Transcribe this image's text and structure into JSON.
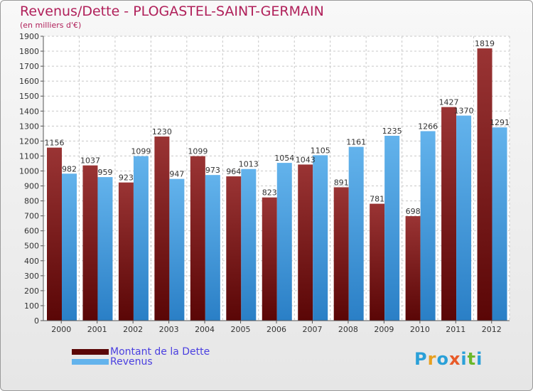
{
  "title": "Revenus/Dette - PLOGASTEL-SAINT-GERMAIN",
  "subtitle": "(en milliers d'€)",
  "logo": {
    "text": "Proxiti",
    "letters": [
      {
        "ch": "P",
        "color": "#2aa0d8"
      },
      {
        "ch": "r",
        "color": "#e8a020"
      },
      {
        "ch": "o",
        "color": "#2aa0d8"
      },
      {
        "ch": "x",
        "color": "#e85a28"
      },
      {
        "ch": "i",
        "color": "#2aa0d8"
      },
      {
        "ch": "t",
        "color": "#6ab82a"
      },
      {
        "ch": "i",
        "color": "#2aa0d8"
      }
    ]
  },
  "colors": {
    "debt_dark": "#5a0606",
    "debt_light": "#9a3434",
    "revenue_dark": "#2a7fc6",
    "revenue_light": "#63b3ec",
    "title": "#b0205a",
    "legend_text": "#4a3fe0"
  },
  "chart_data": {
    "type": "bar",
    "categories": [
      "2000",
      "2001",
      "2002",
      "2003",
      "2004",
      "2005",
      "2006",
      "2007",
      "2008",
      "2009",
      "2010",
      "2011",
      "2012"
    ],
    "series": [
      {
        "name": "Montant de la Dette",
        "values": [
          1156,
          1037,
          923,
          1230,
          1099,
          964,
          823,
          1043,
          891,
          781,
          698,
          1427,
          1819
        ]
      },
      {
        "name": "Revenus",
        "values": [
          982,
          959,
          1099,
          947,
          973,
          1013,
          1054,
          1105,
          1161,
          1235,
          1266,
          1370,
          1291
        ]
      }
    ],
    "ylim": [
      0,
      1900
    ],
    "yticks": [
      0,
      100,
      200,
      300,
      400,
      500,
      600,
      700,
      800,
      900,
      1000,
      1100,
      1200,
      1300,
      1400,
      1500,
      1600,
      1700,
      1800,
      1900
    ],
    "grid": true,
    "legend": "bottom-left"
  }
}
